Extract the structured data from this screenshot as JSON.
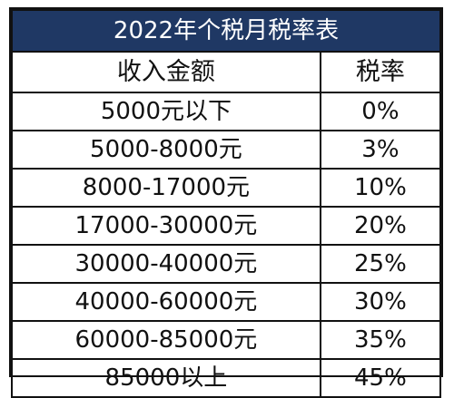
{
  "table": {
    "title": "2022年个税月税率表",
    "headers": {
      "amount": "收入金额",
      "rate": "税率"
    },
    "rows": [
      {
        "amount": "5000元以下",
        "rate": "0%"
      },
      {
        "amount": "5000-8000元",
        "rate": "3%"
      },
      {
        "amount": "8000-17000元",
        "rate": "10%"
      },
      {
        "amount": "17000-30000元",
        "rate": "20%"
      },
      {
        "amount": "30000-40000元",
        "rate": "25%"
      },
      {
        "amount": "40000-60000元",
        "rate": "30%"
      },
      {
        "amount": "60000-85000元",
        "rate": "35%"
      },
      {
        "amount": "85000以上",
        "rate": "45%"
      }
    ]
  },
  "colors": {
    "title_background": "#1f3864",
    "title_text": "#ffffff",
    "border": "#111111",
    "text": "#111111"
  }
}
